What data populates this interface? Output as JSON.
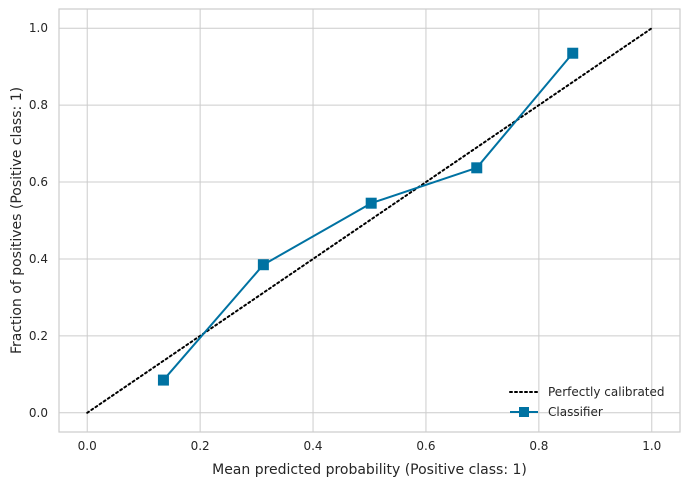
{
  "chart_data": {
    "type": "line",
    "title": "",
    "xlabel": "Mean predicted probability (Positive class: 1)",
    "ylabel": "Fraction of positives (Positive class: 1)",
    "xlim": [
      -0.05,
      1.05
    ],
    "ylim": [
      -0.05,
      1.05
    ],
    "xticks": [
      "0.0",
      "0.2",
      "0.4",
      "0.6",
      "0.8",
      "1.0"
    ],
    "yticks": [
      "0.0",
      "0.2",
      "0.4",
      "0.6",
      "0.8",
      "1.0"
    ],
    "grid": true,
    "legend_position": "bottom-right",
    "series": [
      {
        "name": "Perfectly calibrated",
        "style": "dotted",
        "color": "#000000",
        "x": [
          0.0,
          1.0
        ],
        "y": [
          0.0,
          1.0
        ]
      },
      {
        "name": "Classifier",
        "style": "solid",
        "marker": "square",
        "color": "#0072a2",
        "x": [
          0.135,
          0.312,
          0.503,
          0.69,
          0.86
        ],
        "y": [
          0.085,
          0.385,
          0.545,
          0.637,
          0.935
        ]
      }
    ]
  }
}
